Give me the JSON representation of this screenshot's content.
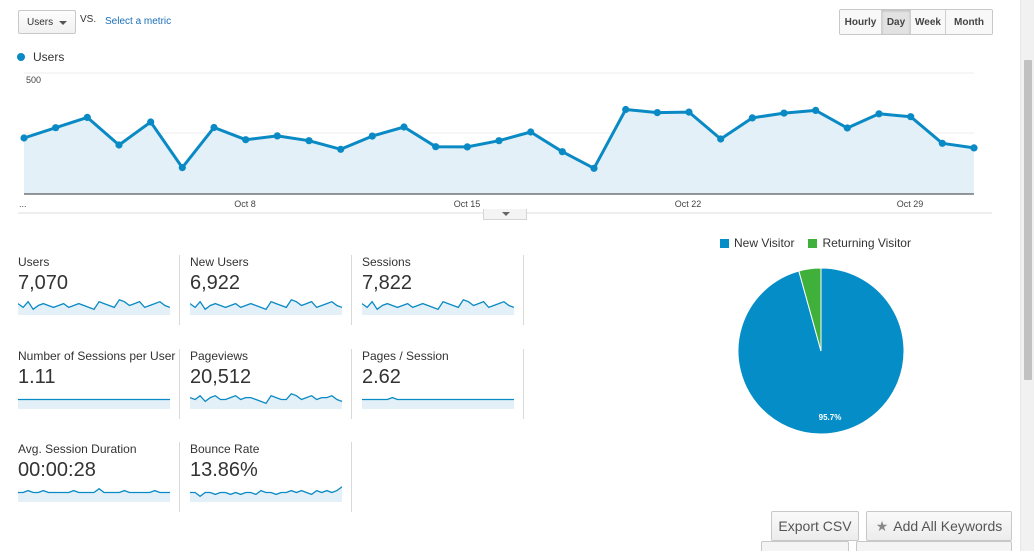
{
  "colors": {
    "primary": "#0a8ac4",
    "line_fill": "#e3f0f8",
    "returning": "#3fb03a",
    "new_visitor": "#058dc7"
  },
  "controls": {
    "metric_select": "Users",
    "vs_label": "VS.",
    "select_metric_link": "Select a metric",
    "periods": [
      "Hourly",
      "Day",
      "Week",
      "Month"
    ],
    "active_period": "Day"
  },
  "chart_data": {
    "type": "line",
    "series_name": "Users",
    "x_labels": [
      "...",
      "Oct 8",
      "Oct 15",
      "Oct 22",
      "Oct 29"
    ],
    "y_ticks": [
      "500",
      "250"
    ],
    "ylim": [
      0,
      500
    ],
    "values": [
      229,
      272,
      315,
      200,
      296,
      106,
      273,
      222,
      238,
      218,
      182,
      237,
      275,
      193,
      192,
      218,
      254,
      172,
      103,
      348,
      335,
      337,
      225,
      313,
      333,
      344,
      271,
      330,
      318,
      207,
      188
    ]
  },
  "scorecards": [
    {
      "label": "Users",
      "value": "7,070",
      "spark": [
        6,
        4,
        7,
        3,
        5,
        6,
        5,
        4,
        5,
        6,
        4,
        5,
        6,
        5,
        4,
        3,
        7,
        6,
        5,
        4,
        8,
        7,
        5,
        6,
        7,
        4,
        5,
        6,
        7,
        5,
        4
      ]
    },
    {
      "label": "New Users",
      "value": "6,922",
      "spark": [
        6,
        4,
        7,
        3,
        5,
        6,
        5,
        4,
        5,
        6,
        4,
        5,
        6,
        5,
        4,
        3,
        7,
        6,
        5,
        4,
        8,
        7,
        5,
        6,
        7,
        4,
        5,
        6,
        7,
        5,
        4
      ]
    },
    {
      "label": "Sessions",
      "value": "7,822",
      "spark": [
        6,
        4,
        7,
        3,
        5,
        6,
        5,
        4,
        5,
        6,
        4,
        5,
        6,
        5,
        4,
        3,
        7,
        6,
        5,
        4,
        8,
        7,
        5,
        6,
        7,
        4,
        5,
        6,
        7,
        5,
        4
      ]
    },
    {
      "label": "Number of Sessions per User",
      "value": "1.11",
      "spark": [
        5,
        5,
        5,
        5,
        5,
        5,
        5,
        5,
        5,
        5,
        5,
        5,
        5,
        5,
        5,
        5,
        5,
        5,
        5,
        5,
        5,
        5,
        5,
        5,
        5,
        5,
        5,
        5,
        5,
        5,
        5
      ]
    },
    {
      "label": "Pageviews",
      "value": "20,512",
      "spark": [
        6,
        5,
        7,
        4,
        6,
        7,
        5,
        5,
        6,
        7,
        5,
        6,
        6,
        5,
        4,
        3,
        7,
        6,
        5,
        5,
        8,
        7,
        5,
        6,
        7,
        5,
        6,
        6,
        7,
        5,
        4
      ]
    },
    {
      "label": "Pages / Session",
      "value": "2.62",
      "spark": [
        5,
        5,
        5,
        5,
        5,
        5,
        6,
        5,
        5,
        5,
        5,
        5,
        5,
        5,
        5,
        5,
        5,
        5,
        5,
        5,
        5,
        5,
        5,
        5,
        5,
        5,
        5,
        5,
        5,
        5,
        5
      ]
    },
    {
      "label": "Avg. Session Duration",
      "value": "00:00:28",
      "spark": [
        5,
        5,
        6,
        5,
        5,
        6,
        5,
        5,
        5,
        5,
        5,
        6,
        5,
        5,
        5,
        5,
        7,
        5,
        5,
        5,
        5,
        6,
        5,
        5,
        5,
        5,
        5,
        6,
        5,
        5,
        5
      ]
    },
    {
      "label": "Bounce Rate",
      "value": "13.86%",
      "spark": [
        5,
        5,
        3,
        5,
        5,
        4,
        5,
        5,
        4,
        5,
        4,
        5,
        5,
        4,
        6,
        5,
        5,
        4,
        5,
        5,
        6,
        5,
        6,
        5,
        4,
        6,
        5,
        6,
        5,
        6,
        8
      ]
    }
  ],
  "pie": {
    "legend": [
      {
        "label": "New Visitor",
        "color": "#058dc7"
      },
      {
        "label": "Returning Visitor",
        "color": "#3fb03a"
      }
    ],
    "new_share": 0.957,
    "slice_label": "95.7%"
  },
  "actions": {
    "export_label": "Export CSV",
    "keywords_label": "Add All Keywords",
    "star_icon": "star-icon"
  }
}
